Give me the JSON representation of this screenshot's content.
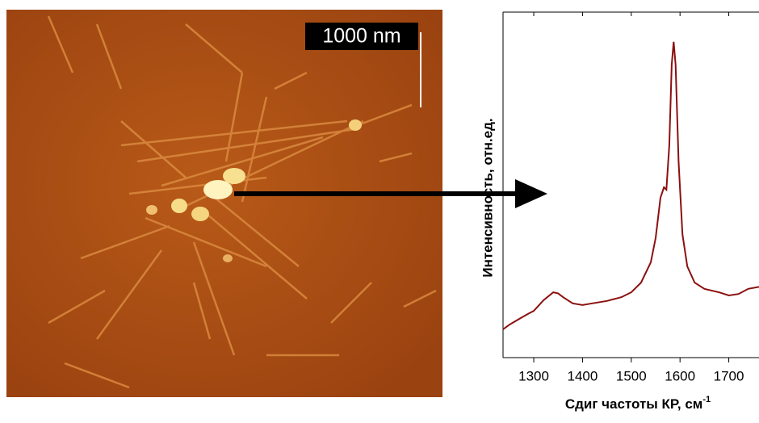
{
  "image": {
    "scale_bar_label": "1000 nm"
  },
  "chart_data": {
    "type": "line",
    "x_label": {
      "text": "Сдиг частоты КР, см",
      "superscript": "-1"
    },
    "y_label": "Интенсивность, отн.ед.",
    "xlim": [
      1237,
      1762
    ],
    "ylim": [
      0,
      100
    ],
    "xticks": [
      1300,
      1400,
      1500,
      1600,
      1700
    ],
    "series": [
      {
        "color": "#8b1010",
        "x": [
          1237,
          1250,
          1270,
          1290,
          1300,
          1320,
          1340,
          1350,
          1360,
          1380,
          1400,
          1420,
          1450,
          1480,
          1500,
          1520,
          1540,
          1550,
          1560,
          1567,
          1572,
          1578,
          1583,
          1587,
          1591,
          1597,
          1605,
          1615,
          1630,
          1650,
          1680,
          1700,
          1720,
          1740,
          1762
        ],
        "values": [
          8.2,
          9.5,
          11.2,
          12.8,
          13.5,
          16.6,
          18.9,
          18.6,
          17.5,
          15.7,
          15.2,
          15.7,
          16.4,
          17.5,
          18.9,
          21.7,
          27.6,
          34.6,
          46.3,
          49.3,
          48.6,
          61.4,
          84.8,
          91.4,
          84.8,
          56.8,
          35.7,
          26.4,
          21.7,
          19.9,
          18.9,
          18.0,
          18.4,
          19.9,
          20.5
        ]
      }
    ]
  }
}
